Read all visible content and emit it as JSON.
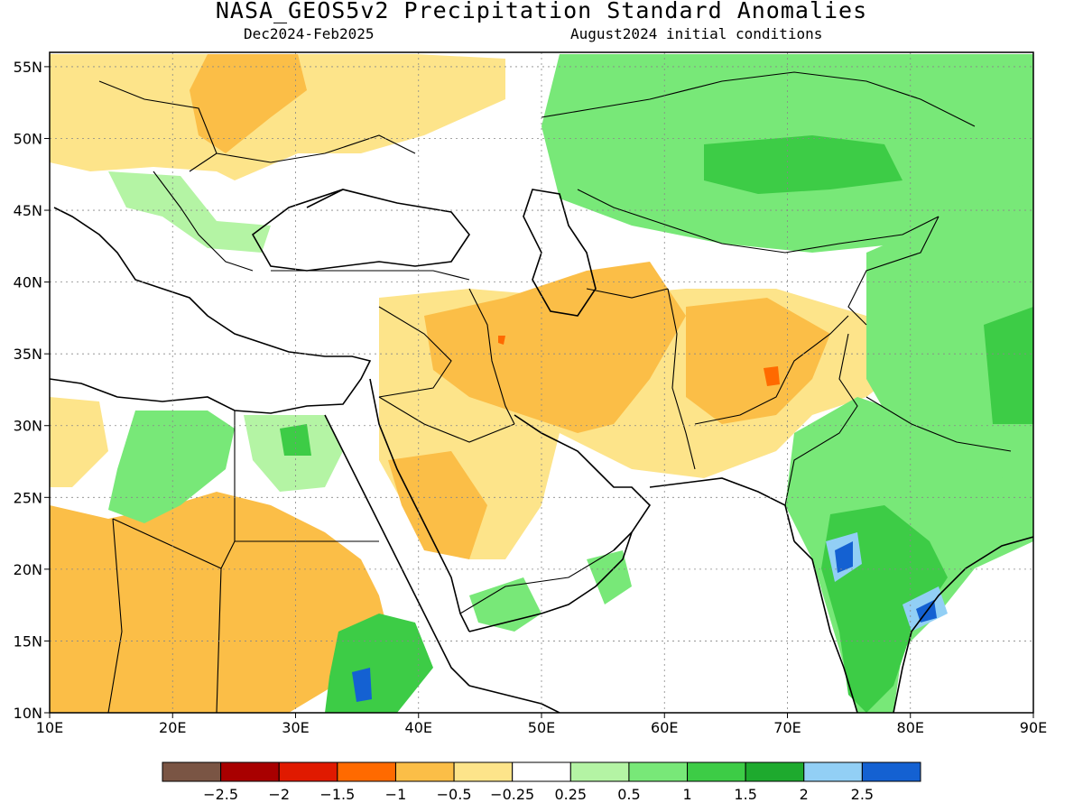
{
  "title": "NASA_GEOS5v2 Precipitation Standard Anomalies",
  "subtitle_period": "Dec2024-Feb2025",
  "subtitle_init": "August2024 initial conditions",
  "map": {
    "lon_range": [
      10,
      90
    ],
    "lat_range": [
      10,
      56
    ],
    "lon_ticks": [
      "10E",
      "20E",
      "30E",
      "40E",
      "50E",
      "60E",
      "70E",
      "80E",
      "90E"
    ],
    "lat_ticks": [
      "10N",
      "15N",
      "20N",
      "25N",
      "30N",
      "35N",
      "40N",
      "45N",
      "50N",
      "55N"
    ],
    "grid": "dotted"
  },
  "colorbar": {
    "colors": [
      "#7a5544",
      "#a80000",
      "#e01a00",
      "#ff6a00",
      "#fbbe47",
      "#fde48a",
      "#ffffff",
      "#b4f4a4",
      "#78e878",
      "#3dcc46",
      "#1eaa2e",
      "#92cff5",
      "#1461d2"
    ],
    "labels": [
      "−2.5",
      "−2",
      "−1.5",
      "−1",
      "−0.5",
      "−0.25",
      "0.25",
      "0.5",
      "1",
      "1.5",
      "2",
      "2.5"
    ]
  }
}
